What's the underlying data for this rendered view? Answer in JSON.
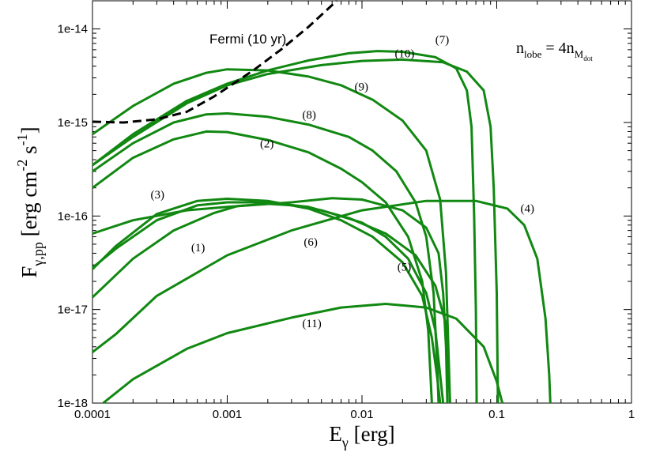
{
  "chart_data": {
    "type": "line",
    "x_scale": "log",
    "y_scale": "log",
    "xlim": [
      0.0001,
      1
    ],
    "ylim": [
      1e-18,
      2e-14
    ],
    "x_ticks": [
      "0.0001",
      "0.001",
      "0.01",
      "0.1",
      "1"
    ],
    "y_ticks": [
      "1e-18",
      "1e-17",
      "1e-16",
      "1e-15",
      "1e-14"
    ],
    "xlabel": {
      "main": "E",
      "sub": "γ",
      "rest": " [erg]"
    },
    "ylabel": {
      "main": "F",
      "sub": "γ,pp",
      "rest": " [erg cm",
      "sup1": "-2",
      "mid": " s",
      "sup2": "-1",
      "end": "]"
    },
    "annotation": {
      "lhs": "n",
      "lhs_sub": "lobe",
      "eq": " = 4n",
      "rhs_sub": "M",
      "rhs_subsub": "dot"
    },
    "grid": false,
    "colors": {
      "curves": "#118811",
      "fermi": "#000000"
    },
    "fermi": {
      "name": "Fermi (10 yr)",
      "style": "dashed",
      "points": [
        [
          0.0001,
          1.02e-15
        ],
        [
          0.00017,
          1e-15
        ],
        [
          0.0003,
          1.08e-15
        ],
        [
          0.0005,
          1.3e-15
        ],
        [
          0.0008,
          1.9e-15
        ],
        [
          0.0012,
          2.8e-15
        ],
        [
          0.0016,
          3.7e-15
        ],
        [
          0.0025,
          6e-15
        ],
        [
          0.004,
          1.05e-14
        ],
        [
          0.0065,
          2e-14
        ]
      ]
    },
    "series": [
      {
        "name": "(1)",
        "points": [
          [
            0.0001,
            1.35e-17
          ],
          [
            0.0002,
            3.5e-17
          ],
          [
            0.0004,
            7e-17
          ],
          [
            0.0008,
            1.08e-16
          ],
          [
            0.0012,
            1.28e-16
          ],
          [
            0.002,
            1.35e-16
          ],
          [
            0.003,
            1.3e-16
          ],
          [
            0.005,
            1.15e-16
          ],
          [
            0.01,
            8.5e-17
          ],
          [
            0.015,
            6e-17
          ],
          [
            0.022,
            3.5e-17
          ],
          [
            0.03,
            1.5e-17
          ],
          [
            0.035,
            6e-18
          ],
          [
            0.038,
            2e-18
          ],
          [
            0.04,
            1e-18
          ]
        ]
      },
      {
        "name": "(2)",
        "points": [
          [
            0.0001,
            2e-16
          ],
          [
            0.0002,
            4.2e-16
          ],
          [
            0.0004,
            6.6e-16
          ],
          [
            0.0007,
            8e-16
          ],
          [
            0.001,
            7.9e-16
          ],
          [
            0.002,
            6.5e-16
          ],
          [
            0.004,
            4.8e-16
          ],
          [
            0.007,
            3.2e-16
          ],
          [
            0.01,
            2.3e-16
          ],
          [
            0.015,
            1.4e-16
          ],
          [
            0.022,
            6e-17
          ],
          [
            0.028,
            2e-17
          ],
          [
            0.031,
            6e-18
          ],
          [
            0.033,
            1e-18
          ]
        ]
      },
      {
        "name": "(3)",
        "points": [
          [
            0.0001,
            2.7e-17
          ],
          [
            0.00015,
            4.8e-17
          ],
          [
            0.0003,
            1.05e-16
          ],
          [
            0.0006,
            1.45e-16
          ],
          [
            0.001,
            1.53e-16
          ],
          [
            0.002,
            1.45e-16
          ],
          [
            0.004,
            1.2e-16
          ],
          [
            0.007,
            9e-17
          ],
          [
            0.012,
            6e-17
          ],
          [
            0.02,
            3.2e-17
          ],
          [
            0.028,
            1.4e-17
          ],
          [
            0.033,
            5e-18
          ],
          [
            0.036,
            2e-18
          ],
          [
            0.038,
            1e-18
          ]
        ]
      },
      {
        "name": "(4)",
        "points": [
          [
            0.0001,
            3.5e-18
          ],
          [
            0.00015,
            5.5e-18
          ],
          [
            0.0003,
            1.4e-17
          ],
          [
            0.001,
            3.8e-17
          ],
          [
            0.003,
            7e-17
          ],
          [
            0.01,
            1.15e-16
          ],
          [
            0.03,
            1.45e-16
          ],
          [
            0.07,
            1.45e-16
          ],
          [
            0.12,
            1.2e-16
          ],
          [
            0.16,
            8e-17
          ],
          [
            0.2,
            3.5e-17
          ],
          [
            0.23,
            8e-18
          ],
          [
            0.245,
            2e-18
          ],
          [
            0.25,
            1e-18
          ]
        ]
      },
      {
        "name": "(5)",
        "points": [
          [
            0.0001,
            2.8e-17
          ],
          [
            0.00015,
            4.5e-17
          ],
          [
            0.0003,
            9e-17
          ],
          [
            0.0006,
            1.3e-16
          ],
          [
            0.001,
            1.4e-16
          ],
          [
            0.002,
            1.4e-16
          ],
          [
            0.004,
            1.25e-16
          ],
          [
            0.008,
            9.5e-17
          ],
          [
            0.015,
            6.5e-17
          ],
          [
            0.025,
            3.8e-17
          ],
          [
            0.035,
            1.8e-17
          ],
          [
            0.042,
            7e-18
          ],
          [
            0.045,
            1e-18
          ]
        ]
      },
      {
        "name": "(6)",
        "points": [
          [
            0.0001,
            6.5e-17
          ],
          [
            0.0002,
            9e-17
          ],
          [
            0.0005,
            1.15e-16
          ],
          [
            0.001,
            1.25e-16
          ],
          [
            0.003,
            1.4e-16
          ],
          [
            0.006,
            1.55e-16
          ],
          [
            0.01,
            1.5e-16
          ],
          [
            0.02,
            1.15e-16
          ],
          [
            0.03,
            7.5e-17
          ],
          [
            0.037,
            4e-17
          ],
          [
            0.04,
            1.5e-17
          ],
          [
            0.042,
            4e-18
          ],
          [
            0.043,
            1e-18
          ]
        ]
      },
      {
        "name": "(7)",
        "points": [
          [
            0.0001,
            3.5e-16
          ],
          [
            0.0002,
            7.5e-16
          ],
          [
            0.0005,
            1.7e-15
          ],
          [
            0.001,
            2.6e-15
          ],
          [
            0.002,
            3.6e-15
          ],
          [
            0.004,
            4.6e-15
          ],
          [
            0.008,
            5.5e-15
          ],
          [
            0.013,
            5.8e-15
          ],
          [
            0.02,
            5.7e-15
          ],
          [
            0.035,
            5e-15
          ],
          [
            0.05,
            3.8e-15
          ],
          [
            0.06,
            2.2e-15
          ],
          [
            0.065,
            9e-16
          ],
          [
            0.068,
            1e-16
          ],
          [
            0.07,
            1e-17
          ],
          [
            0.071,
            1e-18
          ]
        ]
      },
      {
        "name": "(8)",
        "points": [
          [
            0.0001,
            3e-16
          ],
          [
            0.0002,
            6e-16
          ],
          [
            0.0004,
            1e-15
          ],
          [
            0.0007,
            1.22e-15
          ],
          [
            0.001,
            1.25e-15
          ],
          [
            0.002,
            1.15e-15
          ],
          [
            0.004,
            9.5e-16
          ],
          [
            0.008,
            7e-16
          ],
          [
            0.012,
            5e-16
          ],
          [
            0.018,
            3e-16
          ],
          [
            0.025,
            1.4e-16
          ],
          [
            0.03,
            6e-17
          ],
          [
            0.034,
            1.5e-17
          ],
          [
            0.036,
            3e-18
          ],
          [
            0.037,
            1e-18
          ]
        ]
      },
      {
        "name": "(9)",
        "points": [
          [
            0.0001,
            7.5e-16
          ],
          [
            0.0002,
            1.5e-15
          ],
          [
            0.0004,
            2.6e-15
          ],
          [
            0.0007,
            3.4e-15
          ],
          [
            0.001,
            3.7e-15
          ],
          [
            0.002,
            3.6e-15
          ],
          [
            0.004,
            3.1e-15
          ],
          [
            0.007,
            2.5e-15
          ],
          [
            0.012,
            1.75e-15
          ],
          [
            0.02,
            1.05e-15
          ],
          [
            0.03,
            5e-16
          ],
          [
            0.038,
            1.5e-16
          ],
          [
            0.042,
            2.5e-17
          ],
          [
            0.044,
            3e-18
          ],
          [
            0.045,
            1e-18
          ]
        ]
      },
      {
        "name": "(10)",
        "points": [
          [
            0.0001,
            3.5e-16
          ],
          [
            0.0002,
            7e-16
          ],
          [
            0.0005,
            1.6e-15
          ],
          [
            0.001,
            2.5e-15
          ],
          [
            0.002,
            3.3e-15
          ],
          [
            0.005,
            4.1e-15
          ],
          [
            0.01,
            4.55e-15
          ],
          [
            0.02,
            4.7e-15
          ],
          [
            0.04,
            4.4e-15
          ],
          [
            0.06,
            3.5e-15
          ],
          [
            0.08,
            2.2e-15
          ],
          [
            0.09,
            9e-16
          ],
          [
            0.095,
            2e-16
          ],
          [
            0.1,
            1.5e-17
          ],
          [
            0.102,
            1e-18
          ]
        ]
      },
      {
        "name": "(11)",
        "points": [
          [
            0.00012,
            1e-18
          ],
          [
            0.0002,
            1.8e-18
          ],
          [
            0.0005,
            3.8e-18
          ],
          [
            0.001,
            5.6e-18
          ],
          [
            0.003,
            8.2e-18
          ],
          [
            0.007,
            1.05e-17
          ],
          [
            0.015,
            1.15e-17
          ],
          [
            0.03,
            1.05e-17
          ],
          [
            0.05,
            8e-18
          ],
          [
            0.08,
            4e-18
          ],
          [
            0.1,
            1.7e-18
          ],
          [
            0.11,
            1e-18
          ]
        ]
      }
    ],
    "labels": [
      {
        "text": "(7)",
        "x": 0.035,
        "y": 7e-15
      },
      {
        "text": "(10)",
        "x": 0.0175,
        "y": 5e-15
      },
      {
        "text": "(9)",
        "x": 0.0088,
        "y": 2.2e-15
      },
      {
        "text": "(8)",
        "x": 0.0036,
        "y": 1.1e-15
      },
      {
        "text": "(2)",
        "x": 0.00175,
        "y": 5.4e-16
      },
      {
        "text": "(3)",
        "x": 0.00027,
        "y": 1.55e-16
      },
      {
        "text": "(4)",
        "x": 0.15,
        "y": 1.1e-16
      },
      {
        "text": "(1)",
        "x": 0.00054,
        "y": 4.2e-17
      },
      {
        "text": "(6)",
        "x": 0.0037,
        "y": 4.8e-17
      },
      {
        "text": "(5)",
        "x": 0.0183,
        "y": 2.6e-17
      },
      {
        "text": "(11)",
        "x": 0.0036,
        "y": 6.5e-18
      }
    ]
  }
}
